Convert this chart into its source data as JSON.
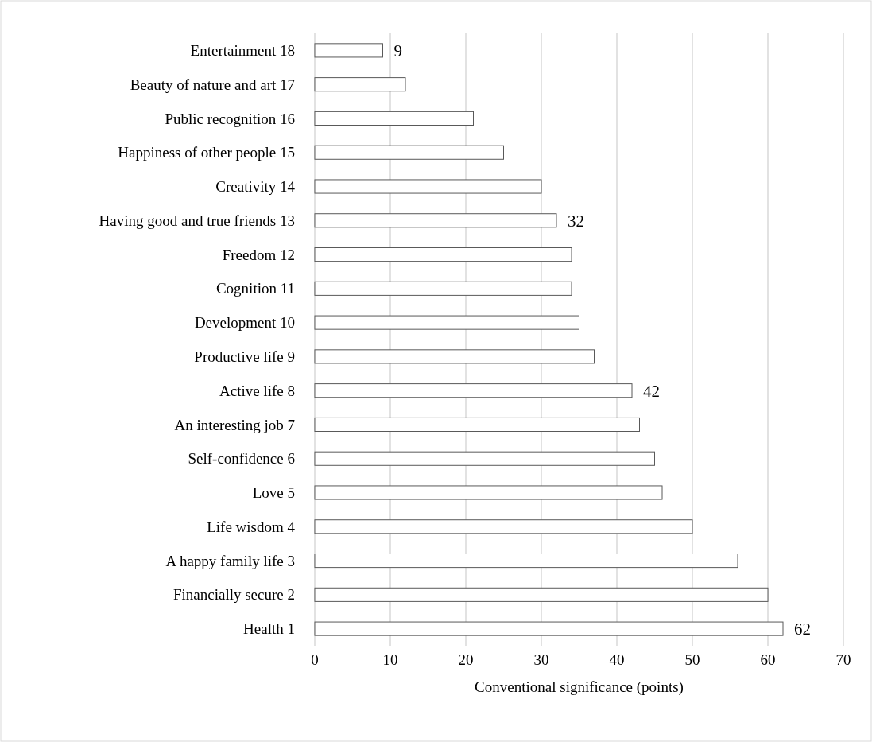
{
  "chart_data": {
    "type": "bar",
    "orientation": "horizontal",
    "xlabel": "Conventional significance (points)",
    "categories": [
      "Entertainment 18",
      "Beauty of nature and art 17",
      "Public recognition 16",
      "Happiness of other people 15",
      "Creativity 14",
      "Having good and true friends 13",
      "Freedom 12",
      "Cognition 11",
      "Development 10",
      "Productive life 9",
      "Active life 8",
      "An interesting job 7",
      "Self-confidence 6",
      "Love 5",
      "Life wisdom 4",
      "A happy family life 3",
      "Financially secure 2",
      "Health 1"
    ],
    "values": [
      9,
      12,
      21,
      25,
      30,
      32,
      34,
      34,
      35,
      37,
      42,
      43,
      45,
      46,
      50,
      56,
      60,
      62
    ],
    "value_labels": [
      "9",
      null,
      null,
      null,
      null,
      "32",
      null,
      null,
      null,
      null,
      "42",
      null,
      null,
      null,
      null,
      null,
      null,
      "62"
    ],
    "color": "#ffffff",
    "xlim": [
      0,
      70
    ],
    "xticks": [
      0,
      10,
      20,
      30,
      40,
      50,
      60,
      70
    ],
    "grid": "x"
  }
}
